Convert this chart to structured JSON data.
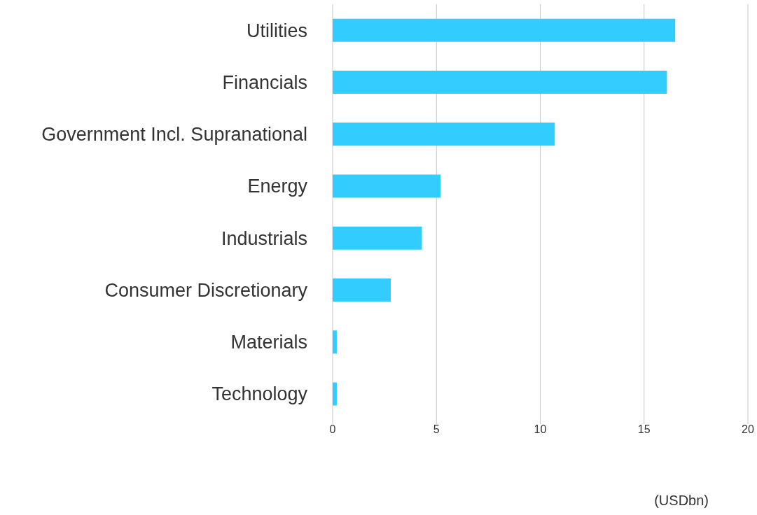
{
  "chart_data": {
    "type": "bar",
    "orientation": "horizontal",
    "xlabel": "(USDbn)",
    "categories": [
      "Utilities",
      "Financials",
      "Government Incl. Supranational",
      "Energy",
      "Industrials",
      "Consumer Discretionary",
      "Materials",
      "Technology"
    ],
    "values": [
      16.5,
      16.1,
      10.7,
      5.2,
      4.3,
      2.8,
      0.2,
      0.2
    ],
    "color": "#33ccff",
    "xlim": [
      0,
      20
    ],
    "xticks": [
      0,
      5,
      10,
      15,
      20
    ],
    "grid": "x",
    "legend": false
  }
}
